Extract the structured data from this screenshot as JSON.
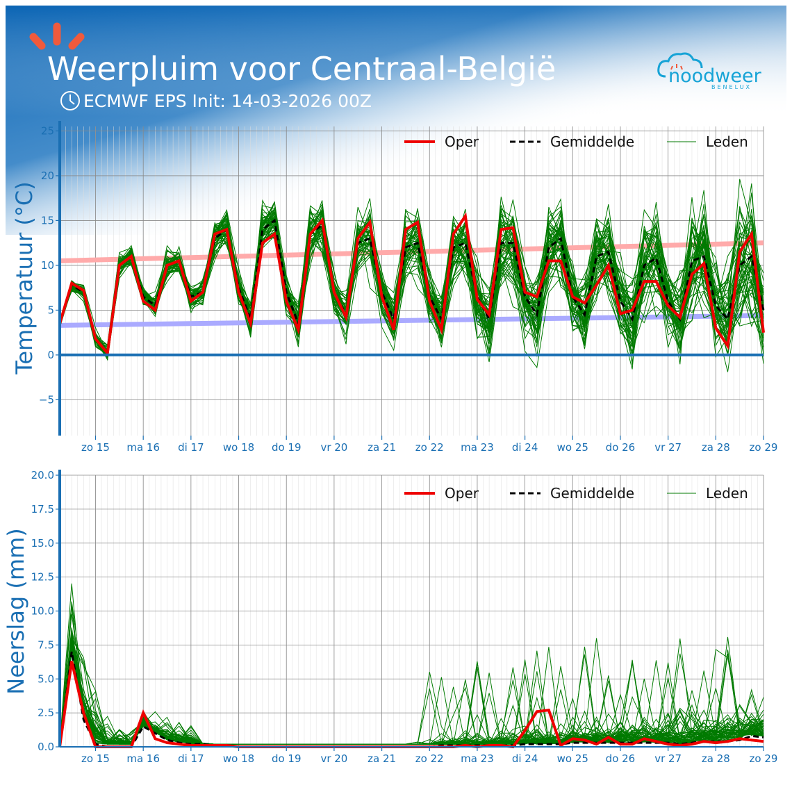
{
  "header": {
    "title": "Weerpluim voor  Centraal-België",
    "subtitle": "ECMWF EPS Init: 14-03-2026 00Z",
    "clock_icon": "clock-icon",
    "logo_icon": "sun-rays-icon",
    "brand": "noodweer",
    "brand_sub": "BENELUX",
    "gradient_color": "#0a64b4"
  },
  "legend": {
    "oper": "Oper",
    "mean": "Gemiddelde",
    "members": "Leden"
  },
  "colors": {
    "oper": "#ee0000",
    "mean": "#000000",
    "members": "#007a00",
    "normal_max": "#ffaaaa",
    "normal_min": "#aaaaff",
    "axis": "#1a6fb3",
    "grid": "#888888"
  },
  "chart_data": [
    {
      "type": "line",
      "ylabel": "Temperatuur (°C)",
      "ylim": [
        -9,
        25.5
      ],
      "yticks": [
        "−5",
        "0",
        "5",
        "10",
        "15",
        "20",
        "25"
      ],
      "ytick_values": [
        -5,
        0,
        5,
        10,
        15,
        20,
        25
      ],
      "xlim_days": [
        0,
        14.75
      ],
      "x_tick_labels": [
        "zo 15",
        "ma 16",
        "di 17",
        "wo 18",
        "do 19",
        "vr 20",
        "za 21",
        "zo 22",
        "ma 23",
        "di 24",
        "wo 25",
        "do 26",
        "vr 27",
        "za 28",
        "zo 29"
      ],
      "x_tick_days": [
        0.75,
        1.75,
        2.75,
        3.75,
        4.75,
        5.75,
        6.75,
        7.75,
        8.75,
        9.75,
        10.75,
        11.75,
        12.75,
        13.75,
        14.75
      ],
      "grid": true,
      "legend_position": "top-right",
      "normal_max": {
        "x_days": [
          0,
          14.75
        ],
        "values": [
          10.5,
          12.5
        ]
      },
      "normal_min": {
        "x_days": [
          0,
          14.75
        ],
        "values": [
          3.3,
          4.4
        ]
      },
      "series": [
        {
          "name": "Oper",
          "x_days": [
            0,
            0.25,
            0.5,
            0.75,
            1,
            1.25,
            1.5,
            1.75,
            2,
            2.25,
            2.5,
            2.75,
            3,
            3.25,
            3.5,
            3.75,
            4,
            4.25,
            4.5,
            4.75,
            5,
            5.25,
            5.5,
            5.75,
            6,
            6.25,
            6.5,
            6.75,
            7,
            7.25,
            7.5,
            7.75,
            8,
            8.25,
            8.5,
            8.75,
            9,
            9.25,
            9.5,
            9.75,
            10,
            10.25,
            10.5,
            10.75,
            11,
            11.25,
            11.5,
            11.75,
            12,
            12.25,
            12.5,
            12.75,
            13,
            13.25,
            13.5,
            13.75,
            14,
            14.25,
            14.5,
            14.75
          ],
          "values": [
            3.5,
            8,
            7.2,
            1.8,
            0.2,
            10,
            11,
            6,
            5,
            10,
            10.5,
            6,
            7,
            13.5,
            14,
            7,
            3.5,
            12.5,
            13.5,
            6,
            2.8,
            13.5,
            15,
            7,
            4.2,
            13,
            14.8,
            6.5,
            2.8,
            14,
            14.8,
            6,
            2.8,
            13.5,
            15.5,
            6.2,
            4.5,
            14,
            14.2,
            7,
            6.5,
            10.5,
            10.5,
            6.5,
            5.8,
            7.8,
            10,
            4.6,
            5,
            8.2,
            8.2,
            5.5,
            4.2,
            9,
            10.2,
            3,
            1,
            11.5,
            13.5,
            2.5
          ]
        },
        {
          "name": "Gemiddelde",
          "x_days": [
            0,
            0.25,
            0.5,
            0.75,
            1,
            1.25,
            1.5,
            1.75,
            2,
            2.25,
            2.5,
            2.75,
            3,
            3.25,
            3.5,
            3.75,
            4,
            4.25,
            4.5,
            4.75,
            5,
            5.25,
            5.5,
            5.75,
            6,
            6.25,
            6.5,
            6.75,
            7,
            7.25,
            7.5,
            7.75,
            8,
            8.25,
            8.5,
            8.75,
            9,
            9.25,
            9.5,
            9.75,
            10,
            10.25,
            10.5,
            10.75,
            11,
            11.25,
            11.5,
            11.75,
            12,
            12.25,
            12.5,
            12.75,
            13,
            13.25,
            13.5,
            13.75,
            14,
            14.25,
            14.5,
            14.75
          ],
          "values": [
            3.5,
            7.8,
            7,
            1.8,
            0.3,
            10,
            11,
            6.5,
            5.5,
            10,
            10.5,
            6.5,
            7,
            13,
            14,
            7.5,
            4,
            14,
            15,
            7,
            3.5,
            13.5,
            14.5,
            7,
            4.5,
            12.5,
            13,
            7,
            4,
            12,
            12.5,
            6.5,
            4,
            12,
            12.5,
            6.5,
            4,
            12.5,
            12.5,
            6.5,
            4.5,
            12,
            13,
            6.5,
            4.5,
            11,
            11.5,
            6,
            4,
            10,
            10.8,
            6,
            4,
            10.5,
            11,
            5.5,
            4,
            10,
            11,
            5
          ]
        }
      ],
      "members_note": "50 ensemble members drawn around the ensemble mean"
    },
    {
      "type": "line",
      "ylabel": "Neerslag (mm)",
      "ylim": [
        0,
        20
      ],
      "yticks": [
        "0.0",
        "2.5",
        "5.0",
        "7.5",
        "10.0",
        "12.5",
        "15.0",
        "17.5",
        "20.0"
      ],
      "ytick_values": [
        0,
        2.5,
        5,
        7.5,
        10,
        12.5,
        15,
        17.5,
        20
      ],
      "xlim_days": [
        0,
        14.75
      ],
      "x_tick_labels": [
        "zo 15",
        "ma 16",
        "di 17",
        "wo 18",
        "do 19",
        "vr 20",
        "za 21",
        "zo 22",
        "ma 23",
        "di 24",
        "wo 25",
        "do 26",
        "vr 27",
        "za 28",
        "zo 29"
      ],
      "x_tick_days": [
        0.75,
        1.75,
        2.75,
        3.75,
        4.75,
        5.75,
        6.75,
        7.75,
        8.75,
        9.75,
        10.75,
        11.75,
        12.75,
        13.75,
        14.75
      ],
      "grid": true,
      "legend_position": "top-right",
      "series": [
        {
          "name": "Oper",
          "x_days": [
            0,
            0.25,
            0.5,
            0.75,
            1,
            1.25,
            1.5,
            1.75,
            2,
            2.25,
            2.5,
            2.75,
            3,
            3.25,
            3.5,
            3.75,
            4,
            4.25,
            4.5,
            4.75,
            5,
            5.25,
            5.5,
            5.75,
            6,
            6.25,
            6.5,
            6.75,
            7,
            7.25,
            7.5,
            7.75,
            8,
            8.25,
            8.5,
            8.75,
            9,
            9.25,
            9.5,
            9.75,
            10,
            10.25,
            10.5,
            10.75,
            11,
            11.25,
            11.5,
            11.75,
            12,
            12.25,
            12.5,
            12.75,
            13,
            13.25,
            13.5,
            13.75,
            14,
            14.25,
            14.5,
            14.75
          ],
          "values": [
            0,
            6.3,
            2.5,
            0,
            0,
            0,
            0,
            2.5,
            0.6,
            0.3,
            0.2,
            0.1,
            0.1,
            0.1,
            0.1,
            0,
            0,
            0,
            0,
            0,
            0,
            0,
            0,
            0,
            0,
            0,
            0,
            0,
            0,
            0,
            0,
            0,
            0,
            0,
            0.1,
            0,
            0.1,
            0.1,
            0,
            1.2,
            2.6,
            2.7,
            0.1,
            0.6,
            0.5,
            0.2,
            0.7,
            0.2,
            0.2,
            0.6,
            0.4,
            0.2,
            0.1,
            0.2,
            0.4,
            0.3,
            0.4,
            0.6,
            0.5,
            0.4
          ]
        },
        {
          "name": "Gemiddelde",
          "x_days": [
            0,
            0.25,
            0.5,
            0.75,
            1,
            1.25,
            1.5,
            1.75,
            2,
            2.25,
            2.5,
            2.75,
            3,
            3.25,
            3.5,
            3.75,
            4,
            4.25,
            4.5,
            4.75,
            5,
            5.25,
            5.5,
            5.75,
            6,
            6.25,
            6.5,
            6.75,
            7,
            7.25,
            7.5,
            7.75,
            8,
            8.25,
            8.5,
            8.75,
            9,
            9.25,
            9.5,
            9.75,
            10,
            10.25,
            10.5,
            10.75,
            11,
            11.25,
            11.5,
            11.75,
            12,
            12.25,
            12.5,
            12.75,
            13,
            13.25,
            13.5,
            13.75,
            14,
            14.25,
            14.5,
            14.75
          ],
          "values": [
            0,
            7,
            2,
            0.2,
            0,
            0,
            0,
            1.5,
            1,
            0.5,
            0.3,
            0.2,
            0.2,
            0.1,
            0.1,
            0,
            0,
            0,
            0,
            0,
            0,
            0,
            0,
            0,
            0,
            0,
            0,
            0,
            0,
            0,
            0,
            0,
            0.1,
            0.1,
            0.1,
            0.1,
            0.1,
            0.1,
            0.1,
            0.2,
            0.2,
            0.2,
            0.2,
            0.3,
            0.3,
            0.3,
            0.3,
            0.3,
            0.3,
            0.3,
            0.3,
            0.3,
            0.2,
            0.3,
            0.4,
            0.4,
            0.4,
            0.5,
            0.8,
            0.7
          ]
        }
      ],
      "members_note": "50 ensemble members, spiky spread growing with lead time"
    }
  ]
}
